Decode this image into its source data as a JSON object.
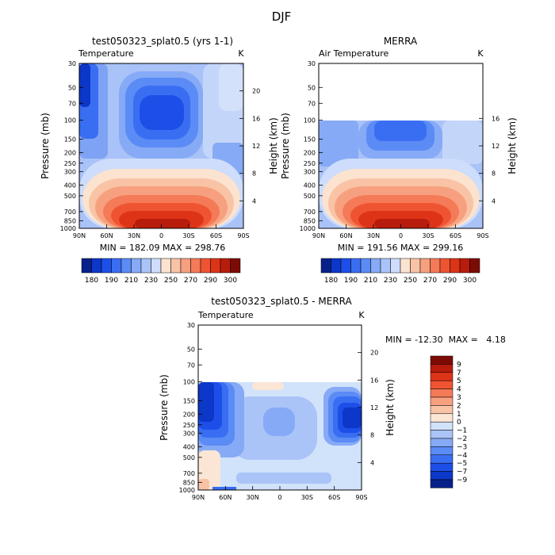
{
  "figure": {
    "title": "DJF"
  },
  "colors": {
    "temp_palette": [
      "#08208a",
      "#0d37c8",
      "#1d4fe8",
      "#3a6ef2",
      "#5b8bf5",
      "#86aaf6",
      "#aac4f8",
      "#cdddfb",
      "#fbe3d0",
      "#f9c3a6",
      "#f7a07f",
      "#f47a58",
      "#ef5432",
      "#dd3417",
      "#b71c0c",
      "#7d0b05"
    ],
    "diff_palette": [
      "#08208a",
      "#0d37c8",
      "#1d4fe8",
      "#3a6ef2",
      "#5b8bf5",
      "#86aaf6",
      "#aac4f8",
      "#d1e2fb",
      "#fbe6d6",
      "#f9c3a6",
      "#f7a07f",
      "#f47a58",
      "#ef5432",
      "#dd3417",
      "#b71c0c",
      "#7d0b05"
    ]
  },
  "panels": [
    {
      "title": "test050323_splat0.5 (yrs 1-1)",
      "variable": "Temperature",
      "units": "K",
      "ylabel": "Pressure (mb)",
      "ylabel2": "Height (km)",
      "stats": "MIN = 182.09  MAX = 298.76",
      "colorbar_labels": [
        "180",
        "190",
        "210",
        "230",
        "250",
        "270",
        "290",
        "300"
      ]
    },
    {
      "title": "MERRA",
      "variable": "Air Temperature",
      "units": "K",
      "ylabel": "Pressure (mb)",
      "ylabel2": "Height (km)",
      "stats": "MIN = 191.56  MAX = 299.16",
      "colorbar_labels": [
        "180",
        "190",
        "210",
        "230",
        "250",
        "270",
        "290",
        "300"
      ]
    },
    {
      "title": "test050323_splat0.5 - MERRA",
      "variable": "Temperature",
      "units": "K",
      "ylabel": "Pressure (mb)",
      "ylabel2": "Height (km)",
      "stats": "MIN = -12.30  MAX =   4.18",
      "colorbar_labels": [
        "9",
        "7",
        "5",
        "4",
        "3",
        "2",
        "1",
        "0",
        "-1",
        "-2",
        "-3",
        "-4",
        "-5",
        "-7",
        "-9"
      ]
    }
  ],
  "chart_data": [
    {
      "type": "heatmap",
      "title": "test050323_splat0.5 (yrs 1-1)",
      "variable": "Temperature",
      "units": "K",
      "x_ticks": [
        "90N",
        "60N",
        "30N",
        "0",
        "30S",
        "60S",
        "90S"
      ],
      "x_range": [
        90,
        -90
      ],
      "y_ticks": [
        30,
        50,
        70,
        100,
        150,
        200,
        250,
        300,
        400,
        500,
        700,
        850,
        1000
      ],
      "y_range": [
        30,
        1000
      ],
      "height_ticks": [
        20,
        16,
        12,
        8,
        4
      ],
      "height_range": [
        0,
        24
      ],
      "data_top_pressure": 30,
      "min": 182.09,
      "max": 298.76,
      "levels": [
        180,
        185,
        190,
        200,
        210,
        220,
        230,
        240,
        250,
        260,
        270,
        280,
        290,
        295,
        300
      ],
      "features": [
        {
          "kind": "cold_core",
          "lat_range": [
            35,
            -25
          ],
          "p_range": [
            50,
            150
          ],
          "value": 195
        },
        {
          "kind": "polar_vortex",
          "lat_range": [
            90,
            75
          ],
          "p_range": [
            30,
            100
          ],
          "value": 185
        },
        {
          "kind": "tropical_surface",
          "lat_range": [
            45,
            -55
          ],
          "p_range": [
            700,
            1000
          ],
          "value": 297
        }
      ]
    },
    {
      "type": "heatmap",
      "title": "MERRA",
      "variable": "Air Temperature",
      "units": "K",
      "x_ticks": [
        "90N",
        "60N",
        "30N",
        "0",
        "30S",
        "60S",
        "90S"
      ],
      "x_range": [
        90,
        -90
      ],
      "y_ticks": [
        30,
        50,
        70,
        100,
        150,
        200,
        250,
        300,
        400,
        500,
        700,
        850,
        1000
      ],
      "y_range": [
        30,
        1000
      ],
      "height_ticks": [
        16,
        12,
        8,
        4
      ],
      "height_range": [
        0,
        24
      ],
      "data_top_pressure": 100,
      "min": 191.56,
      "max": 299.16,
      "levels": [
        180,
        185,
        190,
        200,
        210,
        220,
        230,
        240,
        250,
        260,
        270,
        280,
        290,
        295,
        300
      ],
      "features": [
        {
          "kind": "cold_core",
          "lat_range": [
            30,
            -25
          ],
          "p_range": [
            100,
            150
          ],
          "value": 198
        },
        {
          "kind": "tropical_surface",
          "lat_range": [
            45,
            -55
          ],
          "p_range": [
            700,
            1000
          ],
          "value": 298
        }
      ]
    },
    {
      "type": "heatmap",
      "title": "test050323_splat0.5 - MERRA",
      "variable": "Temperature",
      "units": "K",
      "x_ticks": [
        "90N",
        "60N",
        "30N",
        "0",
        "30S",
        "60S",
        "90S"
      ],
      "x_range": [
        90,
        -90
      ],
      "y_ticks": [
        30,
        50,
        70,
        100,
        150,
        200,
        250,
        300,
        400,
        500,
        700,
        850,
        1000
      ],
      "y_range": [
        30,
        1000
      ],
      "height_ticks": [
        20,
        16,
        12,
        8,
        4
      ],
      "height_range": [
        0,
        24
      ],
      "data_top_pressure": 100,
      "min": -12.3,
      "max": 4.18,
      "levels": [
        -9,
        -7,
        -5,
        -4,
        -3,
        -2,
        -1,
        0,
        1,
        2,
        3,
        4,
        5,
        7,
        9
      ],
      "features": [
        {
          "kind": "nh_polar_cold",
          "lat_range": [
            90,
            65
          ],
          "p_range": [
            100,
            300
          ],
          "value": -9
        },
        {
          "kind": "sh_polar_cold",
          "lat_range": [
            -55,
            -90
          ],
          "p_range": [
            150,
            300
          ],
          "value": -8
        },
        {
          "kind": "warm_nh_lower",
          "lat_range": [
            90,
            70
          ],
          "p_range": [
            600,
            1000
          ],
          "value": 1
        }
      ]
    }
  ]
}
